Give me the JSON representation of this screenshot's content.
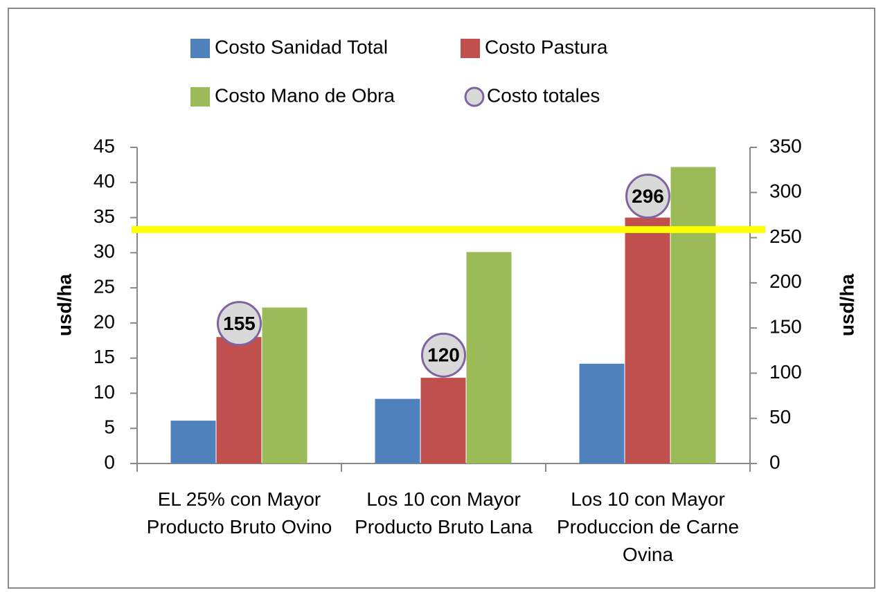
{
  "chart_data": {
    "type": "bar",
    "categories": [
      "EL 25% con Mayor Producto Bruto Ovino",
      "Los 10 con Mayor Producto Bruto Lana",
      "Los 10 con Mayor Produccion de Carne Ovina"
    ],
    "series": [
      {
        "name": "Costo Sanidad Total",
        "color": "#4f81bd",
        "values": [
          6.1,
          9.2,
          14.2
        ]
      },
      {
        "name": "Costo Pastura",
        "color": "#c0504d",
        "values": [
          18,
          12.2,
          35
        ]
      },
      {
        "name": "Costo Mano de Obra",
        "color": "#9bbb59",
        "values": [
          22.2,
          30.1,
          42.2
        ]
      },
      {
        "name": "Costo totales",
        "color": "#d9d9d9",
        "type": "scatter",
        "axis": "y2",
        "values": [
          155,
          120,
          296
        ]
      }
    ],
    "ylabel": "usd/ha",
    "y2label": "usd/ha",
    "ylim": [
      0,
      45
    ],
    "yticks": [
      0,
      5,
      10,
      15,
      20,
      25,
      30,
      35,
      40,
      45
    ],
    "y2lim": [
      0,
      350
    ],
    "y2ticks": [
      0,
      50,
      100,
      150,
      200,
      250,
      300,
      350
    ],
    "hline": {
      "value": 33.3,
      "color": "#ffff00"
    },
    "legend": "top"
  }
}
